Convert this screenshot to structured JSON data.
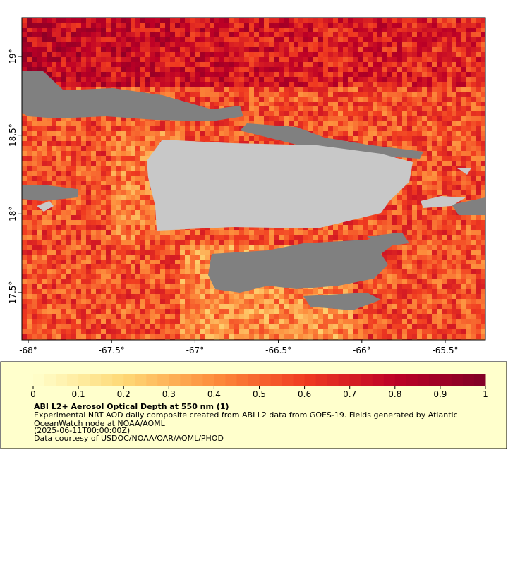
{
  "map": {
    "lon_ticks": [
      {
        "value": -68,
        "label": "-68°"
      },
      {
        "value": -67.5,
        "label": "-67.5°"
      },
      {
        "value": -67,
        "label": "-67°"
      },
      {
        "value": -66.5,
        "label": "-66.5°"
      },
      {
        "value": -66,
        "label": "-66°"
      },
      {
        "value": -65.5,
        "label": "-65.5°"
      }
    ],
    "lat_ticks": [
      {
        "value": 19,
        "label": "19°"
      },
      {
        "value": 18.5,
        "label": "18.5°"
      },
      {
        "value": 18,
        "label": "18°"
      },
      {
        "value": 17.5,
        "label": "17.5°"
      }
    ]
  },
  "colorbar": {
    "ticks": [
      0,
      0.1,
      0.2,
      0.3,
      0.4,
      0.5,
      0.6,
      0.7,
      0.8,
      0.9,
      1
    ],
    "range": [
      0,
      1
    ]
  },
  "legend": {
    "title": "ABI L2+ Aerosol Optical Depth at 550 nm (1)",
    "lines": [
      "Experimental NRT AOD daily composite created from ABI L2 data from GOES-19. Fields generated by Atlantic",
      "OceanWatch node at NOAA/AOML",
      "(2025-06-11T00:00:00Z)",
      "Data courtesy of USDOC/NOAA/OAR/AOML/PHOD"
    ]
  }
}
